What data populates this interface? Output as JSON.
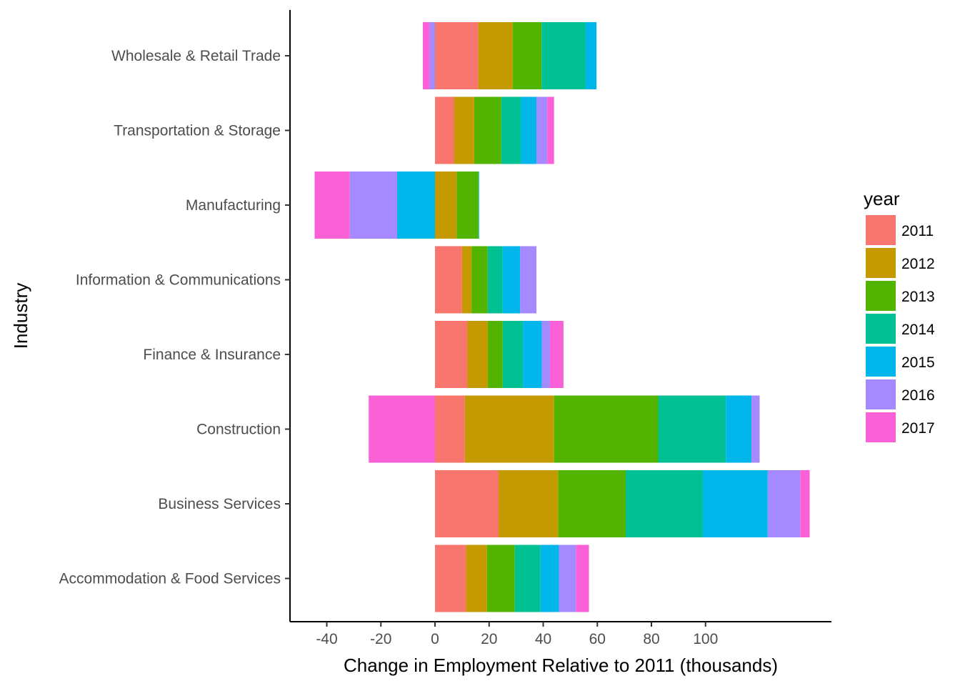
{
  "chart_data": {
    "type": "bar",
    "orientation": "horizontal",
    "stacked": "diverging",
    "xlabel": "Change in Employment Relative to 2011 (thousands)",
    "ylabel": "Industry",
    "xlim": [
      -54,
      148
    ],
    "x_ticks": [
      -40,
      -20,
      0,
      20,
      40,
      60,
      80,
      100
    ],
    "x_tick_labels": [
      "-40",
      "-20",
      "0",
      "20",
      "40",
      "60",
      "80",
      "100"
    ],
    "grid": false,
    "legend": {
      "title": "year",
      "position": "right"
    },
    "categories": [
      "Wholesale & Retail Trade",
      "Transportation & Storage",
      "Manufacturing",
      "Information & Communications",
      "Finance & Insurance",
      "Construction",
      "Business Services",
      "Accommodation & Food Services"
    ],
    "series": [
      {
        "name": "2011",
        "color": "#F8766D",
        "values": [
          16.0,
          7.0,
          0.0,
          10.0,
          12.0,
          11.0,
          23.5,
          11.5
        ]
      },
      {
        "name": "2012",
        "color": "#C49A00",
        "values": [
          12.7,
          7.5,
          8.0,
          3.5,
          7.5,
          33.0,
          22.0,
          7.7
        ]
      },
      {
        "name": "2013",
        "color": "#53B400",
        "values": [
          10.7,
          10.0,
          8.0,
          6.0,
          5.5,
          38.5,
          25.0,
          10.3
        ]
      },
      {
        "name": "2014",
        "color": "#00C094",
        "values": [
          16.3,
          7.3,
          0.3,
          5.5,
          7.5,
          25.0,
          28.5,
          9.5
        ]
      },
      {
        "name": "2015",
        "color": "#00B6EB",
        "values": [
          4.0,
          5.7,
          -14.0,
          6.5,
          7.0,
          9.5,
          24.0,
          6.8
        ]
      },
      {
        "name": "2016",
        "color": "#A58AFF",
        "values": [
          -2.0,
          4.0,
          -17.5,
          6.0,
          3.0,
          3.0,
          12.0,
          6.3
        ]
      },
      {
        "name": "2017",
        "color": "#FB61D7",
        "values": [
          -2.5,
          2.5,
          -13.0,
          0.0,
          5.0,
          -24.5,
          3.5,
          4.8
        ]
      }
    ]
  }
}
